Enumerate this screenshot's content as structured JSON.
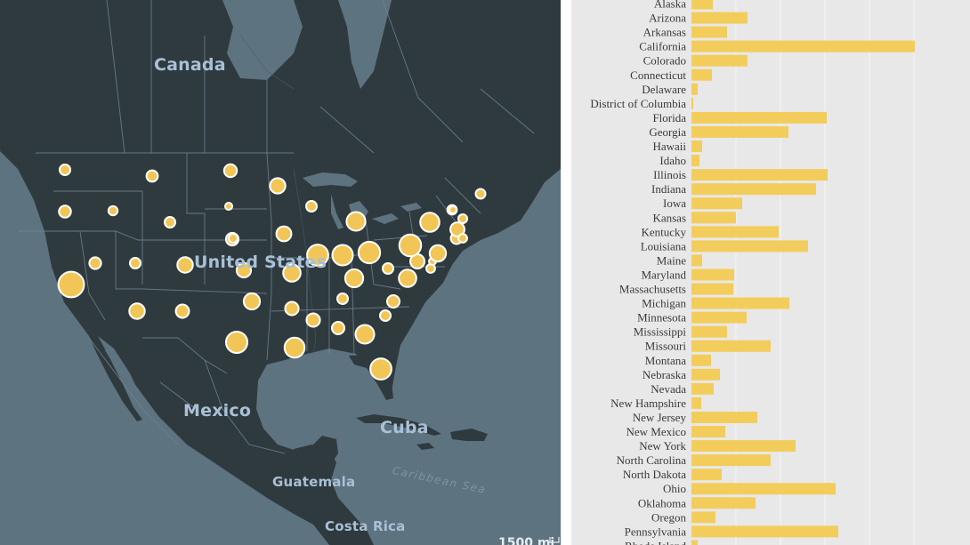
{
  "map": {
    "labels": {
      "canada": "Canada",
      "united_states": "United States",
      "mexico": "Mexico",
      "cuba": "Cuba",
      "guatemala": "Guatemala",
      "costa_rica": "Costa Rica",
      "caribbean_sea": "Caribbean Sea"
    },
    "scale": "1500 mi",
    "colors": {
      "land": "#2f3a3f",
      "water": "#5e7380",
      "border": "#6f8592",
      "circle_fill": "#f2c656",
      "circle_stroke": "#ffffff"
    }
  },
  "chart_data": {
    "type": "bar",
    "orientation": "horizontal",
    "bar_color": "#f2cd5c",
    "grid": true,
    "categories": [
      "Alaska",
      "Arizona",
      "Arkansas",
      "California",
      "Colorado",
      "Connecticut",
      "Delaware",
      "District of Columbia",
      "Florida",
      "Georgia",
      "Hawaii",
      "Idaho",
      "Illinois",
      "Indiana",
      "Iowa",
      "Kansas",
      "Kentucky",
      "Louisiana",
      "Maine",
      "Maryland",
      "Massachusetts",
      "Michigan",
      "Minnesota",
      "Mississippi",
      "Missouri",
      "Montana",
      "Nebraska",
      "Nevada",
      "New Hampshire",
      "New Jersey",
      "New Mexico",
      "New York",
      "North Carolina",
      "North Dakota",
      "Ohio",
      "Oklahoma",
      "Oregon",
      "Pennsylvania",
      "Rhode Island"
    ],
    "values": [
      24,
      63,
      40,
      251,
      63,
      23,
      7,
      2,
      152,
      109,
      12,
      9,
      153,
      140,
      57,
      50,
      98,
      131,
      12,
      48,
      47,
      110,
      62,
      40,
      89,
      22,
      32,
      25,
      11,
      74,
      38,
      117,
      89,
      34,
      162,
      72,
      27,
      165,
      7
    ],
    "xlim": [
      0,
      270
    ]
  }
}
